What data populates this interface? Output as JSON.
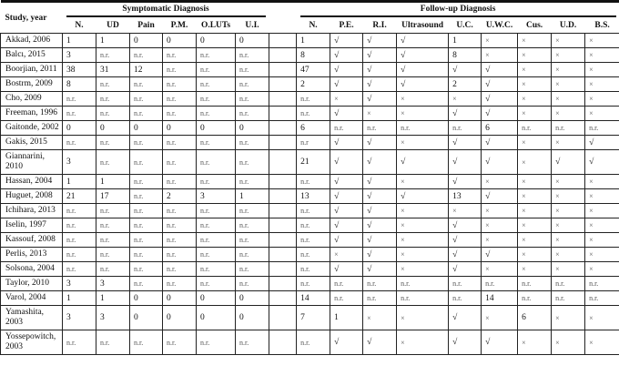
{
  "header": {
    "study_label": "Study, year",
    "symptomatic_label": "Symptomatic Diagnosis",
    "followup_label": "Follow-up Diagnosis",
    "symptomatic_columns": [
      "N.",
      "UD",
      "Pain",
      "P.M.",
      "O.LUTs",
      "U.I."
    ],
    "followup_columns": [
      "N.",
      "P.E.",
      "R.I.",
      "Ultrasound",
      "U.C.",
      "U.W.C.",
      "Cus.",
      "U.D.",
      "B.S."
    ]
  },
  "rows": [
    {
      "study": "Akkad, 2006",
      "sym": [
        "1",
        "1",
        "0",
        "0",
        "0",
        "0"
      ],
      "fu": [
        "1",
        "√",
        "√",
        "√",
        "1",
        "×",
        "×",
        "×",
        "×"
      ]
    },
    {
      "study": "Balcı, 2015",
      "sym": [
        "3",
        "n.r.",
        "n.r.",
        "n.r.",
        "n.r.",
        "n.r."
      ],
      "fu": [
        "8",
        "√",
        "√",
        "√",
        "8",
        "×",
        "×",
        "×",
        "×"
      ]
    },
    {
      "study": "Boorjian, 2011",
      "sym": [
        "38",
        "31",
        "12",
        "n.r.",
        "n.r.",
        "n.r."
      ],
      "fu": [
        "47",
        "√",
        "√",
        "√",
        "√",
        "√",
        "×",
        "×",
        "×"
      ]
    },
    {
      "study": "Bostrm, 2009",
      "sym": [
        "8",
        "n.r.",
        "n.r.",
        "n.r.",
        "n.r.",
        "n.r."
      ],
      "fu": [
        "2",
        "√",
        "√",
        "√",
        "2",
        "√",
        "×",
        "×",
        "×"
      ]
    },
    {
      "study": "Cho, 2009",
      "sym": [
        "n.r.",
        "n.r.",
        "n.r.",
        "n.r.",
        "n.r.",
        "n.r."
      ],
      "fu": [
        "n.r.",
        "×",
        "√",
        "×",
        "×",
        "√",
        "×",
        "×",
        "×"
      ]
    },
    {
      "study": "Freeman, 1996",
      "sym": [
        "n.r.",
        "n.r.",
        "n.r.",
        "n.r.",
        "n.r.",
        "n.r."
      ],
      "fu": [
        "n.r.",
        "√",
        "×",
        "×",
        "√",
        "√",
        "×",
        "×",
        "×"
      ]
    },
    {
      "study": "Gaitonde, 2002",
      "sym": [
        "0",
        "0",
        "0",
        "0",
        "0",
        "0"
      ],
      "fu": [
        "6",
        "n.r.",
        "n.r.",
        "n.r.",
        "n.r.",
        "6",
        "n.r.",
        "n.r.",
        "n.r."
      ]
    },
    {
      "study": "Gakis, 2015",
      "sym": [
        "n.r.",
        "n.r.",
        "n.r.",
        "n.r.",
        "n.r.",
        "n.r."
      ],
      "fu": [
        "n.r",
        "√",
        "√",
        "×",
        "√",
        "√",
        "×",
        "×",
        "√"
      ]
    },
    {
      "study": "Giannarini, 2010",
      "tall": true,
      "sym": [
        "3",
        "n.r.",
        "n.r.",
        "n.r.",
        "n.r.",
        "n.r."
      ],
      "fu": [
        "21",
        "√",
        "√",
        "√",
        "√",
        "√",
        "×",
        "√",
        "√"
      ]
    },
    {
      "study": "Hassan, 2004",
      "sym": [
        "1",
        "1",
        "n.r.",
        "n.r.",
        "n.r.",
        "n.r."
      ],
      "fu": [
        "n.r.",
        "√",
        "√",
        "×",
        "√",
        "×",
        "×",
        "×",
        "×"
      ]
    },
    {
      "study": "Huguet, 2008",
      "sym": [
        "21",
        "17",
        "n.r.",
        "2",
        "3",
        "1"
      ],
      "fu": [
        "13",
        "√",
        "√",
        "√",
        "13",
        "√",
        "×",
        "×",
        "×"
      ]
    },
    {
      "study": "Ichihara, 2013",
      "sym": [
        "n.r.",
        "n.r.",
        "n.r.",
        "n.r.",
        "n.r.",
        "n.r."
      ],
      "fu": [
        "n.r.",
        "√",
        "√",
        "×",
        "×",
        "×",
        "×",
        "×",
        "×"
      ]
    },
    {
      "study": "Iselin, 1997",
      "sym": [
        "n.r.",
        "n.r.",
        "n.r.",
        "n.r.",
        "n.r.",
        "n.r."
      ],
      "fu": [
        "n.r.",
        "√",
        "√",
        "×",
        "√",
        "×",
        "×",
        "×",
        "×"
      ]
    },
    {
      "study": "Kassouf, 2008",
      "sym": [
        "n.r.",
        "n.r.",
        "n.r.",
        "n.r.",
        "n.r.",
        "n.r."
      ],
      "fu": [
        "n.r.",
        "√",
        "√",
        "×",
        "√",
        "×",
        "×",
        "×",
        "×"
      ]
    },
    {
      "study": "Perlis, 2013",
      "sym": [
        "n.r.",
        "n.r.",
        "n.r.",
        "n.r.",
        "n.r.",
        "n.r."
      ],
      "fu": [
        "n.r.",
        "×",
        "√",
        "×",
        "√",
        "√",
        "×",
        "×",
        "×"
      ]
    },
    {
      "study": "Solsona, 2004",
      "sym": [
        "n.r.",
        "n.r.",
        "n.r.",
        "n.r.",
        "n.r.",
        "n.r."
      ],
      "fu": [
        "n.r.",
        "√",
        "√",
        "×",
        "√",
        "×",
        "×",
        "×",
        "×"
      ]
    },
    {
      "study": "Taylor, 2010",
      "sym": [
        "3",
        "3",
        "n.r.",
        "n.r.",
        "n.r.",
        "n.r."
      ],
      "fu": [
        "n.r.",
        "n.r.",
        "n.r.",
        "n.r.",
        "n.r.",
        "n.r.",
        "n.r.",
        "n.r.",
        "n.r."
      ]
    },
    {
      "study": "Varol, 2004",
      "sym": [
        "1",
        "1",
        "0",
        "0",
        "0",
        "0"
      ],
      "fu": [
        "14",
        "n.r.",
        "n.r.",
        "n.r.",
        "n.r.",
        "14",
        "n.r.",
        "n.r.",
        "n.r."
      ]
    },
    {
      "study": "Yamashita, 2003",
      "tall": true,
      "sym": [
        "3",
        "3",
        "0",
        "0",
        "0",
        "0"
      ],
      "fu": [
        "7",
        "1",
        "×",
        "×",
        "√",
        "×",
        "6",
        "×",
        "×"
      ]
    },
    {
      "study": "Yossepowitch, 2003",
      "tall": true,
      "sym": [
        "n.r.",
        "n.r.",
        "n.r.",
        "n.r.",
        "n.r.",
        "n.r."
      ],
      "fu": [
        "n.r.",
        "√",
        "√",
        "×",
        "√",
        "√",
        "×",
        "×",
        "×"
      ]
    }
  ]
}
